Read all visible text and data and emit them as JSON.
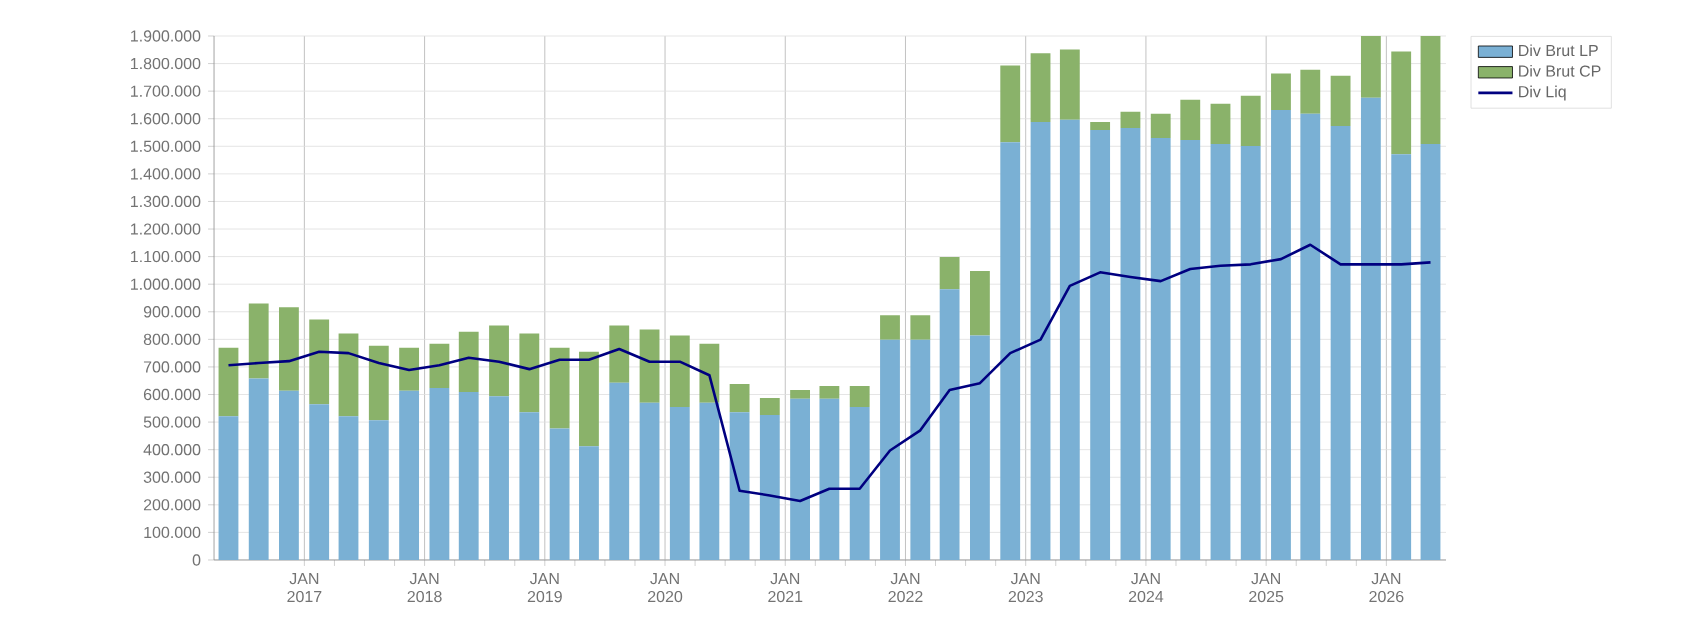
{
  "chart_data": {
    "type": "bar",
    "stacked": true,
    "x": [
      "2016-05-15",
      "2016-08-15",
      "2016-11-15",
      "2017-02-15",
      "2017-05-15",
      "2017-08-15",
      "2017-11-15",
      "2018-02-15",
      "2018-05-15",
      "2018-08-15",
      "2018-11-15",
      "2019-02-15",
      "2019-05-15",
      "2019-08-15",
      "2019-11-15",
      "2020-02-15",
      "2020-05-15",
      "2020-08-15",
      "2020-11-15",
      "2021-02-15",
      "2021-05-15",
      "2021-08-15",
      "2021-11-15",
      "2022-02-15",
      "2022-05-15",
      "2022-08-15",
      "2022-11-15",
      "2023-02-15",
      "2023-05-15",
      "2023-08-15",
      "2023-11-15",
      "2024-02-15",
      "2024-05-15",
      "2024-08-15",
      "2024-11-15",
      "2025-02-15",
      "2025-05-15",
      "2025-08-15",
      "2025-11-15",
      "2026-02-15",
      "2026-05-15"
    ],
    "series": [
      {
        "name": "Div Brut LP",
        "color": "#7ab0d4",
        "values": [
          521000,
          658000,
          614000,
          565000,
          521000,
          507000,
          614000,
          624000,
          609000,
          594000,
          536000,
          477000,
          412000,
          643000,
          570000,
          555000,
          570000,
          536000,
          526000,
          585000,
          585000,
          555000,
          799000,
          799000,
          982000,
          814000,
          1515000,
          1588000,
          1596000,
          1559000,
          1566000,
          1530000,
          1523000,
          1508000,
          1501000,
          1632000,
          1618000,
          1574000,
          1676000,
          1471000,
          1508000
        ]
      },
      {
        "name": "Div Brut CP",
        "color": "#8ab26a",
        "values": [
          249000,
          272000,
          302000,
          307000,
          300000,
          270000,
          156000,
          160000,
          219000,
          256000,
          285000,
          293000,
          343000,
          207000,
          266000,
          259000,
          214000,
          102000,
          61000,
          31000,
          46000,
          76000,
          88000,
          88000,
          117000,
          234000,
          278000,
          249000,
          255000,
          29000,
          59000,
          88000,
          146000,
          146000,
          182000,
          132000,
          160000,
          182000,
          224000,
          373000,
          392000
        ]
      },
      {
        "name": "Div Liq",
        "type": "line",
        "color": "#000080",
        "values": [
          706000,
          714000,
          721000,
          755000,
          750000,
          714000,
          689000,
          706000,
          733000,
          719000,
          692000,
          726000,
          726000,
          765000,
          719000,
          719000,
          670000,
          251000,
          234000,
          214000,
          258000,
          258000,
          397000,
          470000,
          616000,
          641000,
          750000,
          799000,
          994000,
          1043000,
          1026000,
          1011000,
          1055000,
          1067000,
          1072000,
          1091000,
          1143000,
          1072000,
          1072000,
          1072000,
          1079000
        ]
      }
    ],
    "xlim": [
      "2016-04-01",
      "2026-07-01"
    ],
    "xticks": [
      {
        "value": "2017-01-01",
        "label": "JAN 2017"
      },
      {
        "value": "2018-01-01",
        "label": "JAN 2018"
      },
      {
        "value": "2019-01-01",
        "label": "JAN 2019"
      },
      {
        "value": "2020-01-01",
        "label": "JAN 2020"
      },
      {
        "value": "2021-01-01",
        "label": "JAN 2021"
      },
      {
        "value": "2022-01-01",
        "label": "JAN 2022"
      },
      {
        "value": "2023-01-01",
        "label": "JAN 2023"
      },
      {
        "value": "2024-01-01",
        "label": "JAN 2024"
      },
      {
        "value": "2025-01-01",
        "label": "JAN 2025"
      },
      {
        "value": "2026-01-01",
        "label": "JAN 2026"
      }
    ],
    "ylim": [
      0,
      1900000
    ],
    "yticks": [
      {
        "value": 0,
        "label": "0"
      },
      {
        "value": 100000,
        "label": "100.000"
      },
      {
        "value": 200000,
        "label": "200.000"
      },
      {
        "value": 300000,
        "label": "300.000"
      },
      {
        "value": 400000,
        "label": "400.000"
      },
      {
        "value": 500000,
        "label": "500.000"
      },
      {
        "value": 600000,
        "label": "600.000"
      },
      {
        "value": 700000,
        "label": "700.000"
      },
      {
        "value": 800000,
        "label": "800.000"
      },
      {
        "value": 900000,
        "label": "900.000"
      },
      {
        "value": 1000000,
        "label": "1.000.000"
      },
      {
        "value": 1100000,
        "label": "1.100.000"
      },
      {
        "value": 1200000,
        "label": "1.200.000"
      },
      {
        "value": 1300000,
        "label": "1.300.000"
      },
      {
        "value": 1400000,
        "label": "1.400.000"
      },
      {
        "value": 1500000,
        "label": "1.500.000"
      },
      {
        "value": 1600000,
        "label": "1.600.000"
      },
      {
        "value": 1700000,
        "label": "1.700.000"
      },
      {
        "value": 1800000,
        "label": "1.800.000"
      },
      {
        "value": 1900000,
        "label": "1.900.000"
      }
    ],
    "grid": true,
    "legend": "right"
  }
}
